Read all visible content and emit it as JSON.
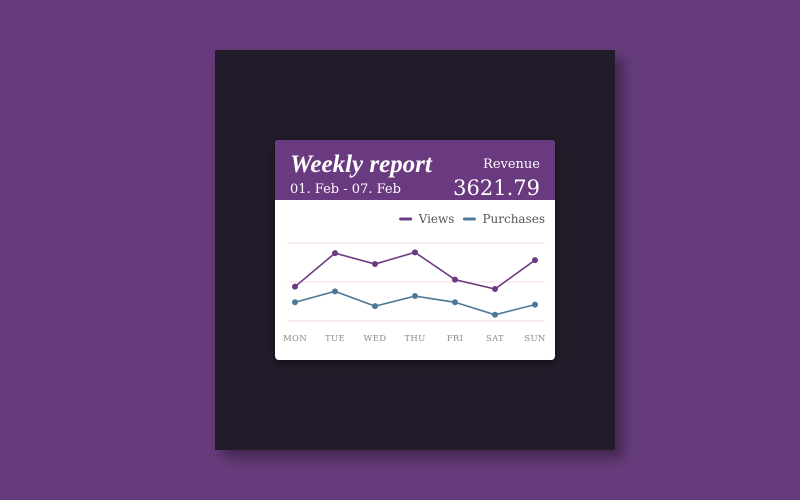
{
  "header": {
    "title": "Weekly report",
    "subtitle": "01. Feb - 07. Feb",
    "revenue_label": "Revenue",
    "revenue": 3621.79
  },
  "chart_data": {
    "type": "line",
    "categories": [
      "MON",
      "TUE",
      "WED",
      "THU",
      "FRI",
      "SAT",
      "SUN"
    ],
    "series": [
      {
        "name": "Views",
        "color": "#6b3a80",
        "values": [
          44,
          87,
          73,
          88,
          53,
          41,
          78
        ]
      },
      {
        "name": "Purchases",
        "color": "#4e7895",
        "values": [
          24,
          38,
          19,
          32,
          24,
          8,
          21
        ]
      }
    ],
    "ylim": [
      0,
      100
    ],
    "yticks": [
      0,
      50,
      100
    ],
    "grid": true,
    "grid_color": "#f6dde9",
    "legend": "top-right"
  }
}
